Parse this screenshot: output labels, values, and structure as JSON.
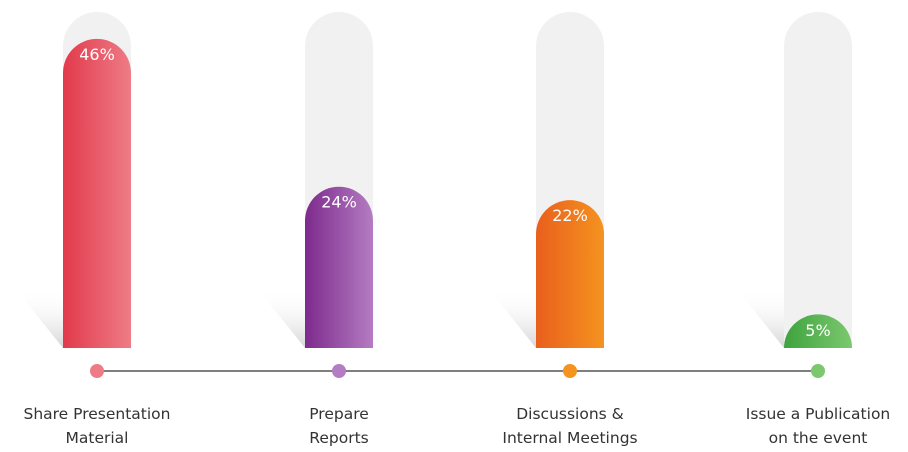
{
  "chart_data": {
    "type": "bar",
    "categories": [
      [
        "Share Presentation",
        "Material"
      ],
      [
        "Prepare",
        "Reports"
      ],
      [
        "Discussions &",
        "Internal Meetings"
      ],
      [
        "Issue a Publication",
        "on the event"
      ]
    ],
    "values": [
      46,
      24,
      22,
      5
    ],
    "data_labels": [
      "46%",
      "24%",
      "22%",
      "5%"
    ],
    "colors": [
      {
        "dark": "#e23a4b",
        "light": "#ee7c86"
      },
      {
        "dark": "#7d2a8c",
        "light": "#b47cc2"
      },
      {
        "dark": "#e95f1d",
        "light": "#f5931f"
      },
      {
        "dark": "#3ea33f",
        "light": "#7cc86e"
      }
    ],
    "track_color": "#f1f1f1",
    "timeline_color": "#555555",
    "ylim": [
      0,
      50
    ]
  }
}
